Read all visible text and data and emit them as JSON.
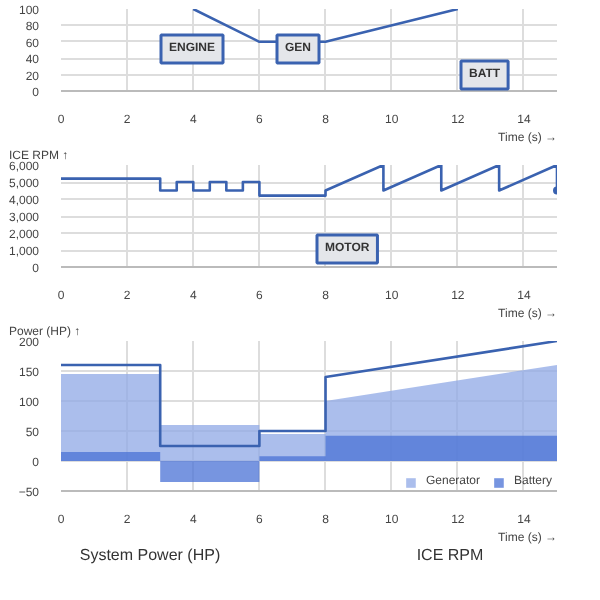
{
  "chart_data": [
    {
      "type": "line",
      "xlabel": "Time (s) →",
      "xlim": [
        0,
        15
      ],
      "xticks": [
        0,
        2,
        4,
        6,
        8,
        10,
        12,
        14
      ],
      "ylim": [
        0,
        100
      ],
      "yticks": [
        0,
        20,
        40,
        60,
        80,
        100
      ],
      "grid": true,
      "annotations": [
        "ENGINE",
        "GEN",
        "BATT"
      ],
      "series": [
        {
          "color": "#3a62b0",
          "x": [
            4,
            6,
            8,
            12
          ],
          "values": [
            100,
            60,
            60,
            100
          ]
        }
      ]
    },
    {
      "type": "line",
      "ylabel": "ICE RPM ↑",
      "xlabel": "Time (s) →",
      "xlim": [
        0,
        15
      ],
      "xticks": [
        0,
        2,
        4,
        6,
        8,
        10,
        12,
        14
      ],
      "ylim": [
        0,
        6000
      ],
      "yticks": [
        {
          "value": 0,
          "label": "0"
        },
        {
          "value": 1000,
          "label": "1,000"
        },
        {
          "value": 2000,
          "label": "2,000"
        },
        {
          "value": 3000,
          "label": "3,000"
        },
        {
          "value": 4000,
          "label": "4,000"
        },
        {
          "value": 5000,
          "label": "5,000"
        },
        {
          "value": 6000,
          "label": "6,000"
        }
      ],
      "grid": true,
      "annotations": [
        "MOTOR"
      ],
      "series": [
        {
          "color": "#3a62b0",
          "x": [
            0,
            3,
            3,
            3.5,
            3.5,
            4,
            4,
            4.5,
            4.5,
            5,
            5,
            5.5,
            5.5,
            6,
            6,
            8,
            8,
            9.75,
            9.75,
            11.5,
            11.5,
            13.25,
            13.25,
            15,
            15
          ],
          "values": [
            5200,
            5200,
            4500,
            4500,
            5000,
            5000,
            4500,
            4500,
            5000,
            5000,
            4500,
            4500,
            5000,
            5000,
            4200,
            4200,
            4500,
            6000,
            4500,
            6000,
            4500,
            6000,
            4500,
            6000,
            4500
          ]
        },
        {
          "type": "scatter",
          "color": "#3a62b0",
          "x": [
            15
          ],
          "values": [
            4500
          ]
        }
      ]
    },
    {
      "type": "area",
      "ylabel": "Power (HP) ↑",
      "xlabel": "Time (s) →",
      "xlim": [
        0,
        15
      ],
      "xticks": [
        0,
        2,
        4,
        6,
        8,
        10,
        12,
        14
      ],
      "ylim": [
        -50,
        200
      ],
      "yticks": [
        -50,
        0,
        50,
        100,
        150,
        200
      ],
      "grid": true,
      "legend": "bottom right",
      "annotations": [
        "System Power (HP)",
        "ICE RPM"
      ],
      "series": [
        {
          "name": "Generator",
          "color": "#8fa8e6",
          "x": [
            0,
            3,
            3,
            6,
            6,
            8,
            8,
            15
          ],
          "values": [
            145,
            145,
            60,
            60,
            45,
            45,
            100,
            160
          ]
        },
        {
          "name": "Battery",
          "color": "#4a72d6",
          "x": [
            0,
            3,
            3,
            6,
            6,
            8,
            8,
            15
          ],
          "values": [
            15,
            15,
            -35,
            -35,
            8,
            8,
            42,
            42
          ]
        },
        {
          "type": "line",
          "color": "#3a62b0",
          "x": [
            0,
            3,
            3,
            6,
            6,
            8,
            8,
            15
          ],
          "values": [
            160,
            160,
            25,
            25,
            50,
            50,
            140,
            200
          ]
        }
      ]
    }
  ]
}
